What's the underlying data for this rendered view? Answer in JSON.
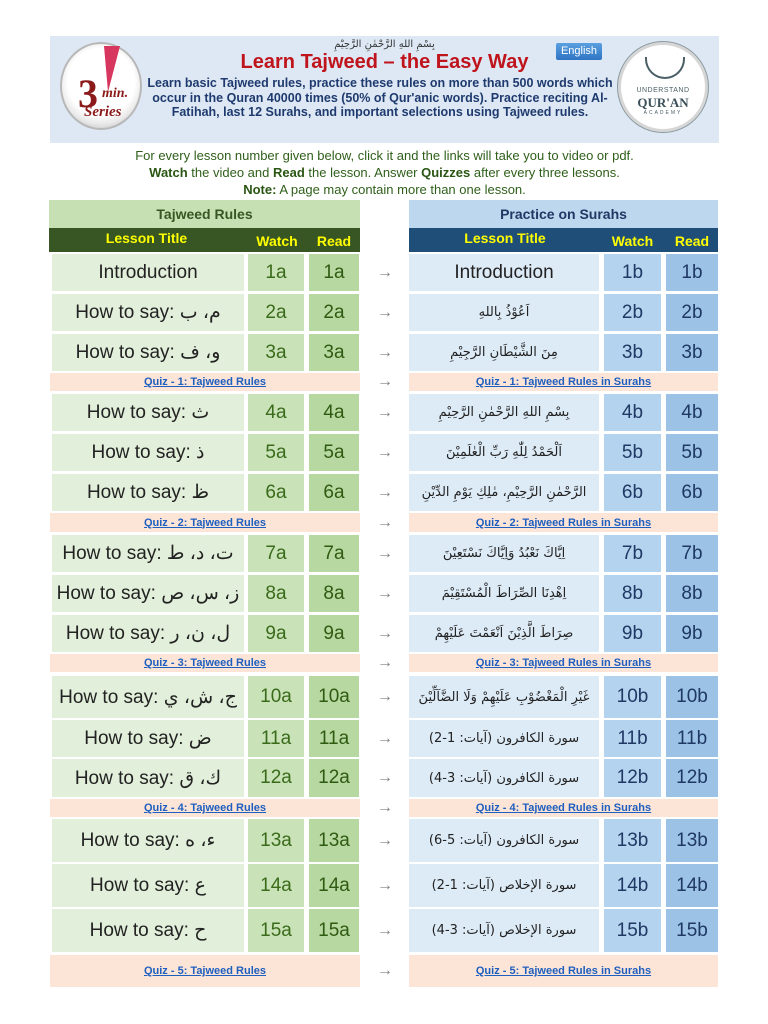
{
  "banner": {
    "bismillah": "بِسْمِ اللهِ الرَّحْمٰنِ الرَّحِيْمِ",
    "title": "Learn Tajweed – the Easy Way",
    "description": "Learn basic Tajweed rules, practice these rules on more than 500 words which occur in the Quran 40000 times (50% of Qur'anic words). Practice reciting Al-Fatihah, last 12 Surahs, and important selections using Tajweed rules.",
    "language_button": "English",
    "left_logo": {
      "number": "3",
      "word1": "min.",
      "word2": "Series"
    },
    "right_logo": {
      "line1": "UNDERSTAND",
      "line2": "QUR'AN",
      "line3": "ACADEMY"
    }
  },
  "instructions": {
    "line1": "For every lesson number given below, click it and the links will take you to video or pdf.",
    "line2_a": "Watch",
    "line2_b": " the video and ",
    "line2_c": "Read",
    "line2_d": " the lesson. Answer ",
    "line2_e": "Quizzes",
    "line2_f": " after every three lessons.",
    "line3_a": "Note:",
    "line3_b": " A page may contain more than one lesson."
  },
  "tajweed": {
    "section_title": "Tajweed Rules",
    "col_title": "Lesson Title",
    "col_watch": "Watch",
    "col_read": "Read"
  },
  "practice": {
    "section_title": "Practice on Surahs",
    "col_title": "Lesson Title",
    "col_watch": "Watch",
    "col_read": "Read"
  },
  "arrow": "→",
  "rows": [
    {
      "t_title": "Introduction",
      "t_watch": "1a",
      "t_read": "1a",
      "p_title": "Introduction",
      "p_watch": "1b",
      "p_read": "1b"
    },
    {
      "t_title": "How to say: م، ب",
      "t_watch": "2a",
      "t_read": "2a",
      "p_title": "اَعُوْذُ بِاللهِ",
      "p_watch": "2b",
      "p_read": "2b"
    },
    {
      "t_title": "How to say: و، ف",
      "t_watch": "3a",
      "t_read": "3a",
      "p_title": "مِنَ الشَّيْطَانِ الرَّجِيْمِ",
      "p_watch": "3b",
      "p_read": "3b"
    },
    {
      "t_title": "How to say: ث",
      "t_watch": "4a",
      "t_read": "4a",
      "p_title": "بِسْمِ اللهِ الرَّحْمٰنِ الرَّحِيْمِ",
      "p_watch": "4b",
      "p_read": "4b"
    },
    {
      "t_title": "How to say: ذ",
      "t_watch": "5a",
      "t_read": "5a",
      "p_title": "اَلْحَمْدُ لِلّٰهِ رَبِّ الْعٰلَمِيْنَ",
      "p_watch": "5b",
      "p_read": "5b"
    },
    {
      "t_title": "How to say: ظ",
      "t_watch": "6a",
      "t_read": "6a",
      "p_title": "الرَّحْمٰنِ الرَّحِيْمِ، مٰلِكِ يَوْمِ الدِّيْنِ",
      "p_watch": "6b",
      "p_read": "6b"
    },
    {
      "t_title": "How to say: ت، د، ط",
      "t_watch": "7a",
      "t_read": "7a",
      "p_title": "اِيَّاكَ نَعْبُدُ وَاِيَّاكَ نَسْتَعِيْنَ",
      "p_watch": "7b",
      "p_read": "7b"
    },
    {
      "t_title": "How to say: ز، س، ص",
      "t_watch": "8a",
      "t_read": "8a",
      "p_title": "اِهْدِنَا الصِّرَاطَ الْمُسْتَقِيْمَ",
      "p_watch": "8b",
      "p_read": "8b"
    },
    {
      "t_title": "How to say: ل، ن، ر",
      "t_watch": "9a",
      "t_read": "9a",
      "p_title": "صِرَاطَ الَّذِيْنَ اَنْعَمْتَ عَلَيْهِمْ",
      "p_watch": "9b",
      "p_read": "9b"
    },
    {
      "t_title": "How to say: ج، ش، ي",
      "t_watch": "10a",
      "t_read": "10a",
      "p_title": "غَيْرِ الْمَغْضُوْبِ عَلَيْهِمْ وَلَا الضَّآلِّيْنَ",
      "p_watch": "10b",
      "p_read": "10b"
    },
    {
      "t_title": "How to say: ض",
      "t_watch": "11a",
      "t_read": "11a",
      "p_title": "سورة الكافرون (آيات: 1-2)",
      "p_watch": "11b",
      "p_read": "11b"
    },
    {
      "t_title": "How to say: ك، ق",
      "t_watch": "12a",
      "t_read": "12a",
      "p_title": "سورة الكافرون (آيات: 3-4)",
      "p_watch": "12b",
      "p_read": "12b"
    },
    {
      "t_title": "How to say: ء، ه",
      "t_watch": "13a",
      "t_read": "13a",
      "p_title": "سورة الكافرون (آيات: 5-6)",
      "p_watch": "13b",
      "p_read": "13b"
    },
    {
      "t_title": "How to say: ع",
      "t_watch": "14a",
      "t_read": "14a",
      "p_title": "سورة الإخلاص (آيات: 1-2)",
      "p_watch": "14b",
      "p_read": "14b"
    },
    {
      "t_title": "How to say: ح",
      "t_watch": "15a",
      "t_read": "15a",
      "p_title": "سورة الإخلاص (آيات: 3-4)",
      "p_watch": "15b",
      "p_read": "15b"
    }
  ],
  "quizzes": [
    {
      "tajweed": "Quiz - 1: Tajweed Rules",
      "practice": "Quiz - 1: Tajweed Rules in Surahs"
    },
    {
      "tajweed": "Quiz - 2: Tajweed Rules",
      "practice": "Quiz - 2: Tajweed Rules in Surahs"
    },
    {
      "tajweed": "Quiz - 3: Tajweed Rules",
      "practice": "Quiz - 3: Tajweed Rules in Surahs"
    },
    {
      "tajweed": "Quiz - 4: Tajweed Rules",
      "practice": "Quiz - 4: Tajweed Rules in Surahs"
    },
    {
      "tajweed": "Quiz - 5: Tajweed Rules",
      "practice": "Quiz - 5: Tajweed Rules in Surahs"
    }
  ],
  "colors": {
    "green_header": "#c6e0b4",
    "green_dark": "#375623",
    "blue_header": "#bdd7ee",
    "blue_dark": "#1f4e79",
    "quiz_bg": "#fce4d6",
    "link": "#1f5fbf",
    "title_red": "#c0141c",
    "heading_yellow": "#ffff00"
  }
}
